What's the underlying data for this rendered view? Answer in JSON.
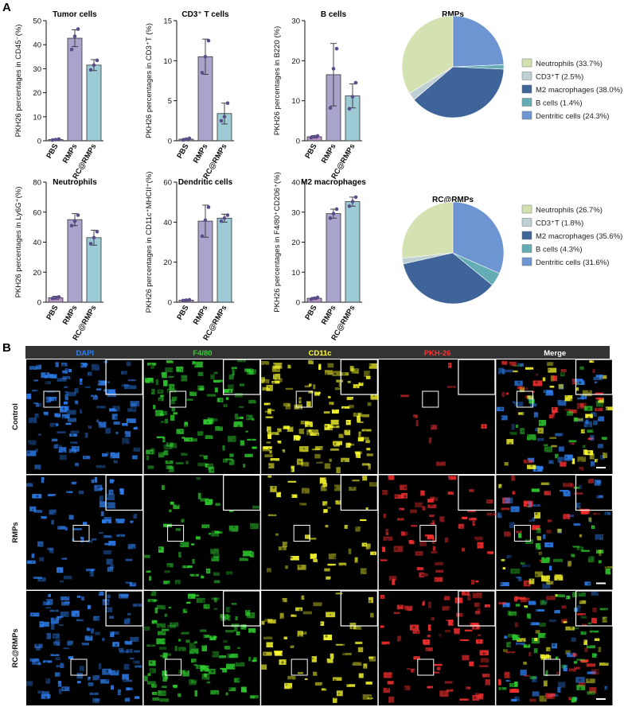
{
  "panels": {
    "a_label": "A",
    "b_label": "B"
  },
  "colors": {
    "PBS": "#b894c4",
    "RMPs": "#a9a4cc",
    "RC@RMPs": "#9ccbd6",
    "dot": "#5b4d8a",
    "Neutrophils": "#d4e1b0",
    "CD3T": "#bfd0d4",
    "M2 macrophages": "#3e6499",
    "B cells": "#64adb5",
    "Dentritic cells": "#6c95d1"
  },
  "chart_data": [
    {
      "type": "bar",
      "title": "Tumor cells",
      "ylabel": "PKH26 percentages in CD45⁻(%)",
      "categories": [
        "PBS",
        "RMPs",
        "RC@RMPs"
      ],
      "values": [
        0.5,
        42.7,
        31.5
      ],
      "errors": [
        0.3,
        3.5,
        2.3
      ],
      "points": [
        [
          0.3,
          0.5,
          0.7
        ],
        [
          38.0,
          43.5,
          46.5
        ],
        [
          29.5,
          31.5,
          33.5
        ]
      ],
      "ylim": [
        0,
        50
      ],
      "yticks": [
        0,
        10,
        20,
        30,
        40,
        50
      ]
    },
    {
      "type": "bar",
      "title": "CD3⁺ T cells",
      "ylabel": "PKH26 percentages in CD3⁺T (%)",
      "categories": [
        "PBS",
        "RMPs",
        "RC@RMPs"
      ],
      "values": [
        0.2,
        10.5,
        3.4
      ],
      "errors": [
        0.1,
        2.2,
        1.3
      ],
      "points": [
        [
          0.1,
          0.2,
          0.3
        ],
        [
          8.5,
          10.5,
          12.5
        ],
        [
          2.5,
          3.0,
          4.7
        ]
      ],
      "ylim": [
        0,
        15
      ],
      "yticks": [
        0,
        5,
        10,
        15
      ]
    },
    {
      "type": "bar",
      "title": "B cells",
      "ylabel": "PKH26 percentages in B220 (%)",
      "categories": [
        "PBS",
        "RMPs",
        "RC@RMPs"
      ],
      "values": [
        1.0,
        16.5,
        11.2
      ],
      "errors": [
        0.3,
        7.8,
        3.0
      ],
      "points": [
        [
          0.8,
          1.0,
          1.2
        ],
        [
          8.2,
          18.0,
          23.0
        ],
        [
          8.0,
          11.0,
          14.5
        ]
      ],
      "ylim": [
        0,
        30
      ],
      "yticks": [
        0,
        10,
        20,
        30
      ]
    },
    {
      "type": "bar",
      "title": "Neutrophils",
      "ylabel": "PKH26 percentages in Ly6G⁺(%)",
      "categories": [
        "PBS",
        "RMPs",
        "RC@RMPs"
      ],
      "values": [
        3.0,
        55.0,
        43.0
      ],
      "errors": [
        1.0,
        4.0,
        5.0
      ],
      "points": [
        [
          2.5,
          3.0,
          3.5
        ],
        [
          51.0,
          54.0,
          58.0
        ],
        [
          39.0,
          43.0,
          47.0
        ]
      ],
      "ylim": [
        0,
        80
      ],
      "yticks": [
        0,
        20,
        40,
        60,
        80
      ]
    },
    {
      "type": "bar",
      "title": "Dendritic cells",
      "ylabel": "PKH26 percentages in CD11c⁺MHCII⁺(%)",
      "categories": [
        "PBS",
        "RMPs",
        "RC@RMPs"
      ],
      "values": [
        1.0,
        40.5,
        42.0
      ],
      "errors": [
        0.4,
        8.0,
        2.0
      ],
      "points": [
        [
          0.8,
          1.0,
          1.2
        ],
        [
          33.0,
          41.0,
          47.5
        ],
        [
          40.5,
          42.0,
          43.5
        ]
      ],
      "ylim": [
        0,
        60
      ],
      "yticks": [
        0,
        20,
        40,
        60
      ]
    },
    {
      "type": "bar",
      "title": "M2 macrophages",
      "ylabel": "PKH26 percentages in F4/80⁺CD206⁺(%)",
      "categories": [
        "PBS",
        "RMPs",
        "RC@RMPs"
      ],
      "values": [
        1.3,
        29.5,
        33.5
      ],
      "errors": [
        0.3,
        1.5,
        1.5
      ],
      "points": [
        [
          1.0,
          1.3,
          1.6
        ],
        [
          28.0,
          29.5,
          31.0
        ],
        [
          32.0,
          33.5,
          35.0
        ]
      ],
      "ylim": [
        0,
        40
      ],
      "yticks": [
        0,
        10,
        20,
        30,
        40
      ]
    },
    {
      "type": "pie",
      "title": "RMPs",
      "labels": [
        "Neutrophils",
        "CD3⁺T",
        "M2 macrophages",
        "B cells",
        "Dentritic cells"
      ],
      "values": [
        33.7,
        2.5,
        38.0,
        1.4,
        24.3
      ],
      "legend": [
        "Neutrophils (33.7%)",
        "CD3⁺T (2.5%)",
        "M2 macrophages (38.0%)",
        "B cells (1.4%)",
        "Dentritic cells (24.3%)"
      ],
      "legend_position": "right"
    },
    {
      "type": "pie",
      "title": "RC@RMPs",
      "labels": [
        "Neutrophils",
        "CD3⁺T",
        "M2 macrophages",
        "B cells",
        "Dentritic cells"
      ],
      "values": [
        26.7,
        1.8,
        35.6,
        4.3,
        31.6
      ],
      "legend": [
        "Neutrophils (26.7%)",
        "CD3⁺T (1.8%)",
        "M2 macrophages (35.6%)",
        "B cells (4.3%)",
        "Dentritic cells (31.6%)"
      ],
      "legend_position": "right"
    }
  ],
  "micrographs": {
    "channels": [
      {
        "label": "DAPI",
        "color": "#2e7ff0"
      },
      {
        "label": "F4/80",
        "color": "#2fd02f"
      },
      {
        "label": "CD11c",
        "color": "#ffff30"
      },
      {
        "label": "PKH-26",
        "color": "#ff3030"
      },
      {
        "label": "Merge",
        "color": "#ffffff"
      }
    ],
    "rows": [
      "Control",
      "RMPs",
      "RC@RMPs"
    ],
    "intensity": [
      [
        0.75,
        0.75,
        0.85,
        0.02,
        0.9
      ],
      [
        0.45,
        0.3,
        0.3,
        0.4,
        0.6
      ],
      [
        0.7,
        0.75,
        0.35,
        0.45,
        0.85
      ]
    ]
  }
}
